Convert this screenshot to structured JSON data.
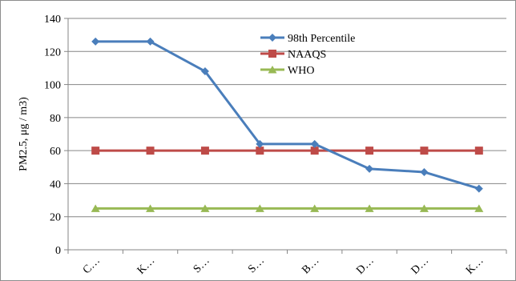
{
  "chart_data": {
    "type": "line",
    "title": "",
    "xlabel": "",
    "ylabel": "PM2.5, μg / m3)",
    "ylim": [
      0,
      140
    ],
    "yticks": [
      0,
      20,
      40,
      60,
      80,
      100,
      120,
      140
    ],
    "grid": true,
    "legend_position": "top-center",
    "categories": [
      "C…",
      "K…",
      "S…",
      "S…",
      "B…",
      "D…",
      "D…",
      "K…"
    ],
    "series": [
      {
        "name": "98th Percentile",
        "color": "#4a7ebb",
        "marker": "diamond",
        "values": [
          126,
          126,
          108,
          64,
          64,
          49,
          47,
          37
        ]
      },
      {
        "name": "NAAQS",
        "color": "#be4b48",
        "marker": "square",
        "values": [
          60,
          60,
          60,
          60,
          60,
          60,
          60,
          60
        ]
      },
      {
        "name": "WHO",
        "color": "#98b954",
        "marker": "triangle",
        "values": [
          25,
          25,
          25,
          25,
          25,
          25,
          25,
          25
        ]
      }
    ]
  }
}
